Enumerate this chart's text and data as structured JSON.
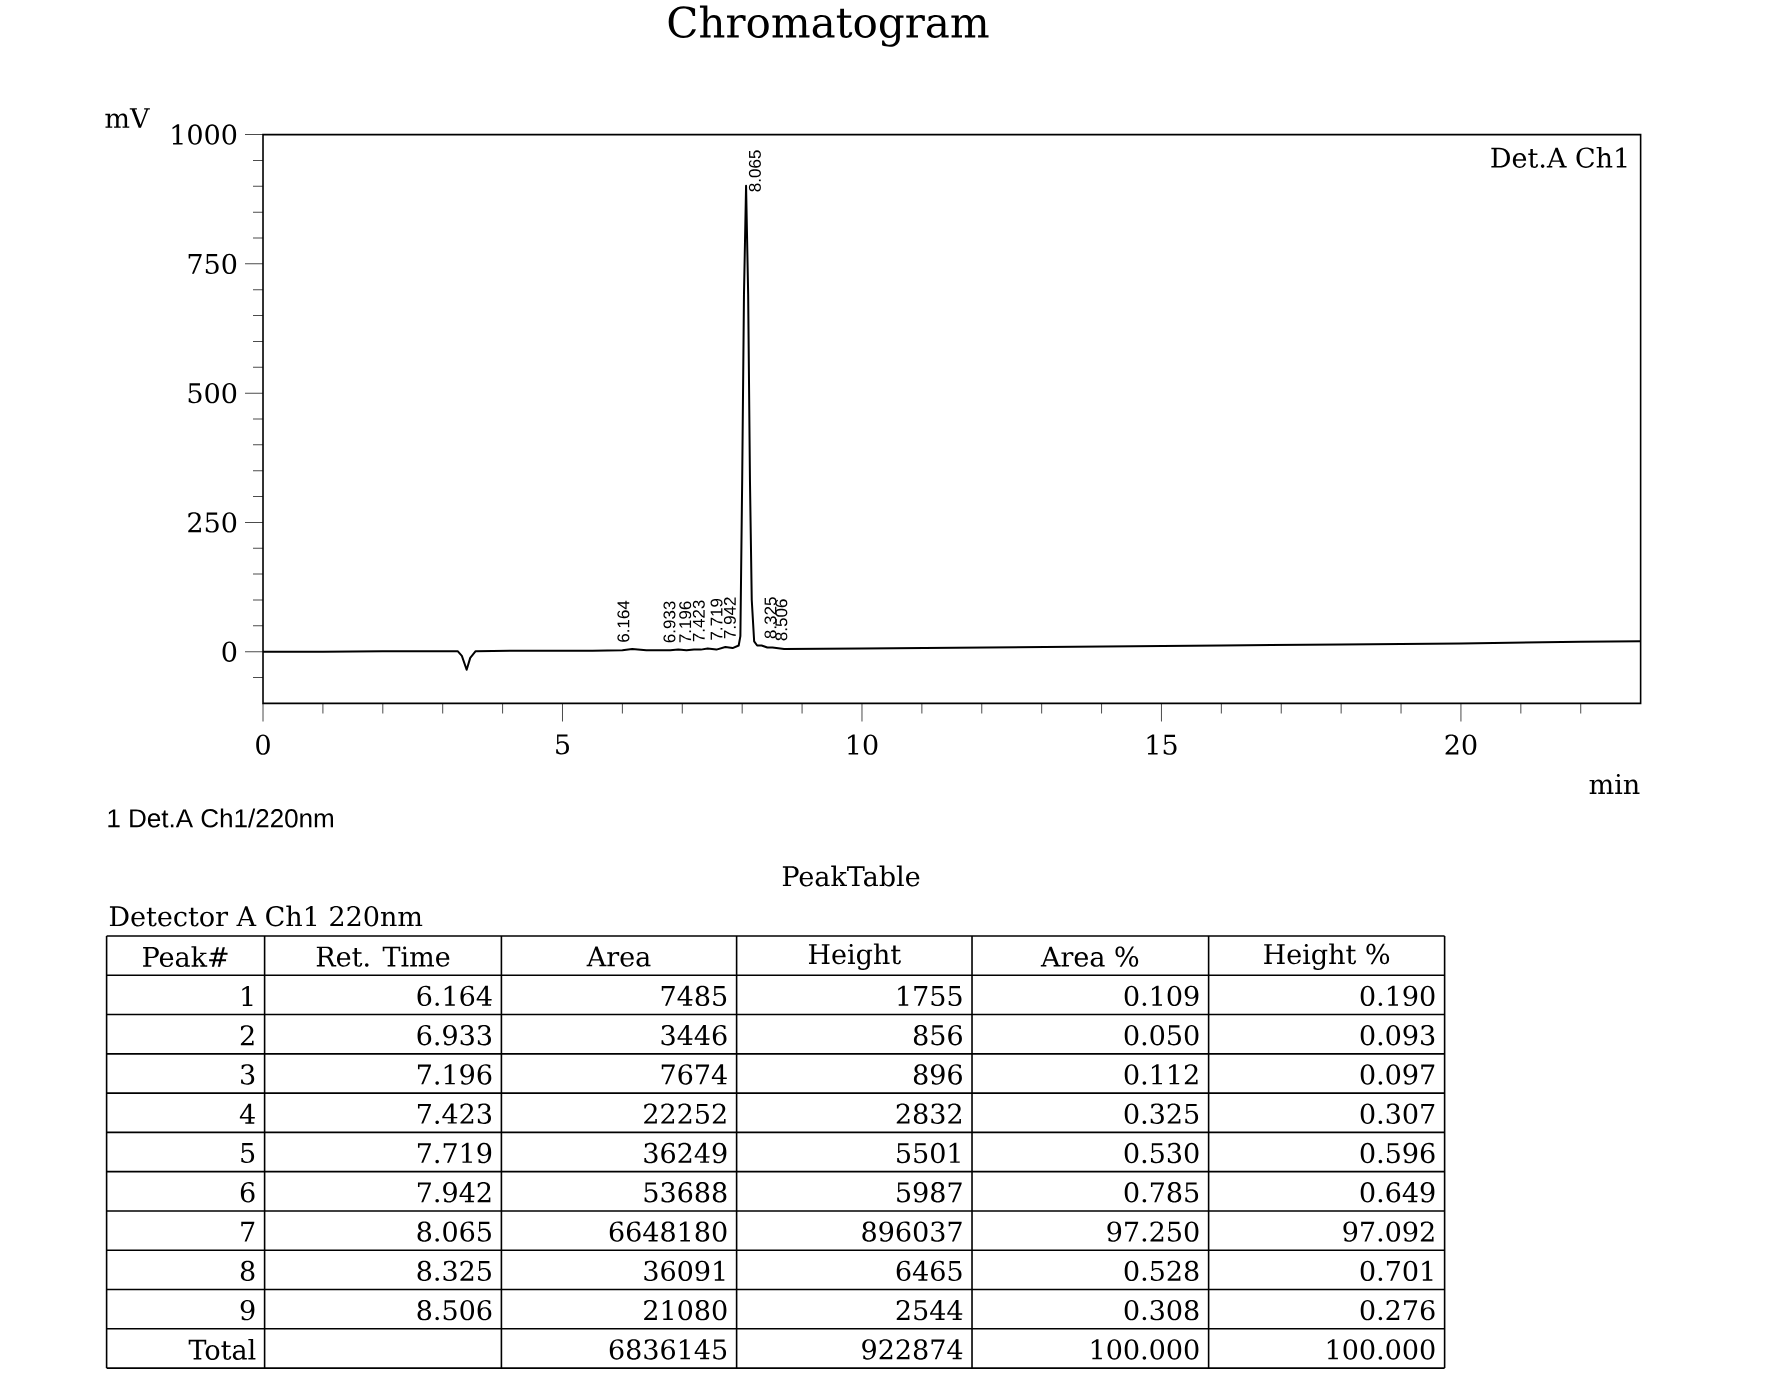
{
  "chart_data": {
    "type": "line",
    "title": "Chromatogram",
    "xlabel": "min",
    "ylabel": "mV",
    "color": "#000000",
    "x": [
      0,
      1,
      2,
      3,
      3.25,
      3.32,
      3.4,
      3.46,
      3.55,
      4.5,
      5.5,
      6,
      6.164,
      6.4,
      6.8,
      6.933,
      7.07,
      7.196,
      7.31,
      7.423,
      7.57,
      7.719,
      7.84,
      7.942,
      7.97,
      8,
      8.03,
      8.065,
      8.1,
      8.13,
      8.16,
      8.2,
      8.25,
      8.325,
      8.42,
      8.506,
      8.7,
      10,
      12,
      14,
      16,
      18,
      20,
      22,
      23
    ],
    "values": [
      0,
      0,
      1,
      1,
      1,
      -8,
      -35,
      -12,
      1,
      2,
      2,
      3,
      5,
      3,
      3,
      4,
      3,
      4,
      4,
      6,
      4,
      9,
      7,
      12,
      30,
      330,
      690,
      901,
      690,
      330,
      100,
      20,
      12,
      12,
      8,
      8,
      5,
      6,
      8,
      10,
      12,
      14,
      16,
      19,
      20
    ],
    "xlim": [
      0,
      23
    ],
    "ylim": [
      -100,
      1000
    ],
    "xticks": [
      0,
      {
        "value": 1,
        "label": null
      },
      {
        "value": 2,
        "label": null
      },
      {
        "value": 3,
        "label": null
      },
      {
        "value": 4,
        "label": null
      },
      5,
      {
        "value": 6,
        "label": null
      },
      {
        "value": 7,
        "label": null
      },
      {
        "value": 8,
        "label": null
      },
      {
        "value": 9,
        "label": null
      },
      10,
      {
        "value": 11,
        "label": null
      },
      {
        "value": 12,
        "label": null
      },
      {
        "value": 13,
        "label": null
      },
      {
        "value": 14,
        "label": null
      },
      15,
      {
        "value": 16,
        "label": null
      },
      {
        "value": 17,
        "label": null
      },
      {
        "value": 18,
        "label": null
      },
      {
        "value": 19,
        "label": null
      },
      20,
      {
        "value": 21,
        "label": null
      },
      {
        "value": 22,
        "label": null
      }
    ],
    "yticks": [
      {
        "value": -50,
        "label": null
      },
      0,
      {
        "value": 50,
        "label": null
      },
      {
        "value": 100,
        "label": null
      },
      {
        "value": 150,
        "label": null
      },
      {
        "value": 200,
        "label": null
      },
      250,
      {
        "value": 300,
        "label": null
      },
      {
        "value": 350,
        "label": null
      },
      {
        "value": 400,
        "label": null
      },
      {
        "value": 450,
        "label": null
      },
      500,
      {
        "value": 550,
        "label": null
      },
      {
        "value": 600,
        "label": null
      },
      {
        "value": 650,
        "label": null
      },
      {
        "value": 700,
        "label": null
      },
      750,
      {
        "value": 800,
        "label": null
      },
      {
        "value": 850,
        "label": null
      },
      {
        "value": 900,
        "label": null
      },
      {
        "value": 950,
        "label": null
      },
      1000
    ],
    "annotations": [
      {
        "text": "6.164",
        "x": 6.164,
        "y": 5
      },
      {
        "text": "6.933",
        "x": 6.933,
        "y": 4
      },
      {
        "text": "7.196",
        "x": 7.196,
        "y": 4
      },
      {
        "text": "7.423",
        "x": 7.423,
        "y": 6
      },
      {
        "text": "7.719",
        "x": 7.719,
        "y": 9
      },
      {
        "text": "7.942",
        "x": 7.942,
        "y": 12
      },
      {
        "text": "8.065",
        "x": 8.065,
        "y": 901
      },
      {
        "text": "8.325",
        "x": 8.325,
        "y": 12
      },
      {
        "text": "8.506",
        "x": 8.506,
        "y": 8
      },
      "Det.A Ch1",
      "1 Det.A Ch1/220nm",
      "PeakTable",
      "Detector A Ch1 220nm",
      "Peak#",
      "Ret. Time",
      "Area",
      "Height",
      "Area %",
      "Height %",
      "1",
      "6.164",
      "7485",
      "1755",
      "0.109",
      "0.190",
      "2",
      "6.933",
      "3446",
      "856",
      "0.050",
      "0.093",
      "3",
      "7.196",
      "7674",
      "896",
      "0.112",
      "0.097",
      "4",
      "7.423",
      "22252",
      "2832",
      "0.325",
      "0.307",
      "5",
      "7.719",
      "36249",
      "5501",
      "0.530",
      "0.596",
      "6",
      "7.942",
      "53688",
      "5987",
      "0.785",
      "0.649",
      "7",
      "8.065",
      "6648180",
      "896037",
      "97.250",
      "97.092",
      "8",
      "8.325",
      "36091",
      "6465",
      "0.528",
      "0.701",
      "9",
      "8.506",
      "21080",
      "2544",
      "0.308",
      "0.276",
      "Total",
      "6836145",
      "922874",
      "100.000",
      "100.000"
    ]
  }
}
